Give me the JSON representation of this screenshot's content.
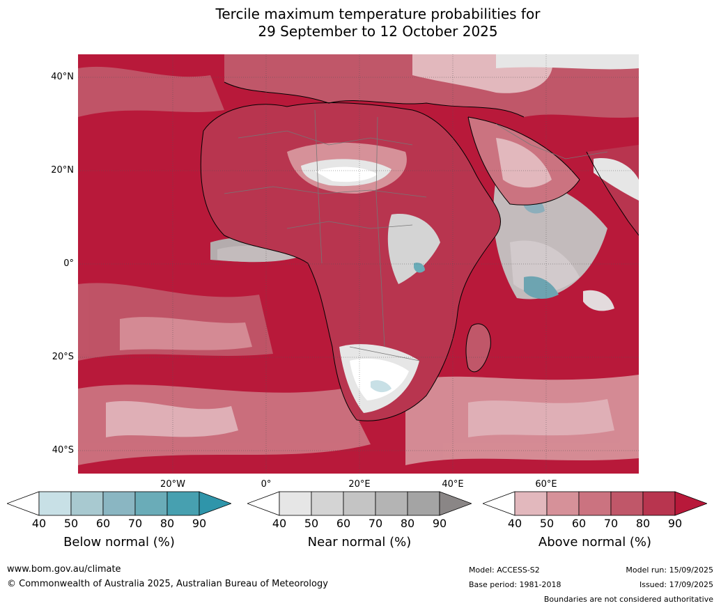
{
  "title": {
    "line1": "Tercile maximum temperature probabilities for",
    "line2": "29 September to 12 October 2025"
  },
  "map": {
    "lat_labels": [
      "40°N",
      "20°N",
      "0°",
      "20°S",
      "40°S"
    ],
    "lon_labels": [
      "20°W",
      "0°",
      "20°E",
      "40°E",
      "60°E"
    ],
    "ocean_base_color": "#b8193a"
  },
  "colorbars": [
    {
      "name": "below",
      "caption": "Below normal (%)",
      "ticks": [
        "40",
        "50",
        "60",
        "70",
        "80",
        "90"
      ],
      "colors": [
        "#ffffff",
        "#c8e0e6",
        "#a8c9d0",
        "#8ab6c2",
        "#6aacb8",
        "#47a0b0",
        "#2f95aa"
      ]
    },
    {
      "name": "near",
      "caption": "Near normal (%)",
      "ticks": [
        "40",
        "50",
        "60",
        "70",
        "80",
        "90"
      ],
      "colors": [
        "#ffffff",
        "#e6e6e6",
        "#d4d4d4",
        "#c4c4c4",
        "#b4b4b4",
        "#a4a4a4",
        "#8a8686"
      ]
    },
    {
      "name": "above",
      "caption": "Above normal (%)",
      "ticks": [
        "40",
        "50",
        "60",
        "70",
        "80",
        "90"
      ],
      "colors": [
        "#ffffff",
        "#e2b8bd",
        "#d69199",
        "#cb7380",
        "#c05769",
        "#b8354f",
        "#b8193a"
      ]
    }
  ],
  "footer": {
    "website": "www.bom.gov.au/climate",
    "copyright": "© Commonwealth of Australia 2025, Australian Bureau of Meteorology",
    "model": "Model: ACCESS-S2",
    "base_period": "Base period: 1981-2018",
    "model_run": "Model run: 15/09/2025",
    "issued": "Issued: 17/09/2025",
    "disclaimer": "Boundaries are not considered authoritative"
  }
}
